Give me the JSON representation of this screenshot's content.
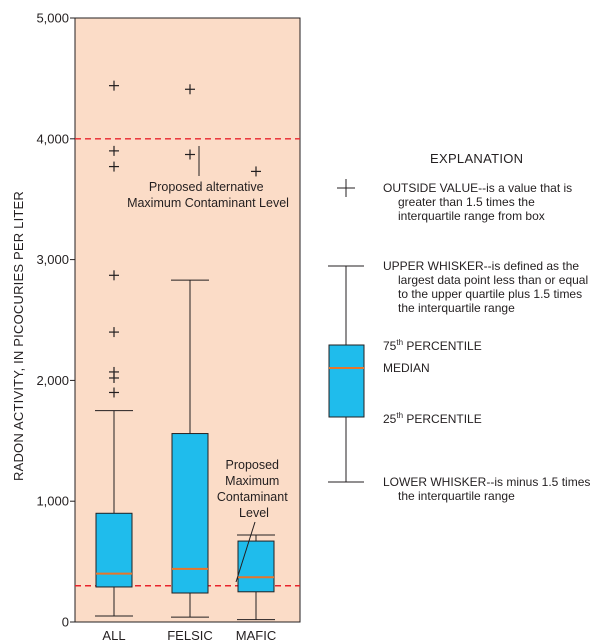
{
  "chart_data": {
    "type": "boxplot",
    "ylabel": "RADON ACTIVITY, IN PICOCURIES PER LITER",
    "ylim": [
      0,
      5000
    ],
    "y_ticks": [
      0,
      1000,
      2000,
      3000,
      4000,
      5000
    ],
    "y_tick_labels": [
      "0",
      "1,000",
      "2,000",
      "3,000",
      "4,000",
      "5,000"
    ],
    "categories": [
      "ALL",
      "FELSIC",
      "MAFIC"
    ],
    "boxes": [
      {
        "category": "ALL",
        "lower_whisker": 50,
        "q1": 290,
        "median": 400,
        "q3": 900,
        "upper_whisker": 1750,
        "outliers": [
          1900,
          2020,
          2070,
          2400,
          2870,
          3770,
          3900,
          4440
        ]
      },
      {
        "category": "FELSIC",
        "lower_whisker": 40,
        "q1": 240,
        "median": 440,
        "q3": 1560,
        "upper_whisker": 2830,
        "outliers": [
          3870,
          4410
        ]
      },
      {
        "category": "MAFIC",
        "lower_whisker": 20,
        "q1": 250,
        "median": 370,
        "q3": 670,
        "upper_whisker": 720,
        "outliers": [
          3730
        ]
      }
    ],
    "reference_lines": [
      {
        "value": 4000,
        "label_lines": [
          "Proposed alternative",
          "Maximum Contaminant Level"
        ]
      },
      {
        "value": 300,
        "label_lines": [
          "Proposed",
          "Maximum",
          "Contaminant",
          "Level"
        ]
      }
    ],
    "colors": {
      "plot_background": "#fbdcc7",
      "box_fill": "#1fbcec",
      "median_line": "#e8752a",
      "reference_line": "#e8242c",
      "ink": "#231f20"
    }
  },
  "explanation": {
    "title": "EXPLANATION",
    "outside_value": [
      "OUTSIDE VALUE--is a value that is",
      "greater than 1.5 times the",
      "interquartile range from box"
    ],
    "upper_whisker": [
      "UPPER WHISKER--is defined as the",
      "largest data point less than or equal",
      "to the upper quartile plus 1.5 times",
      "the interquartile range"
    ],
    "p75": {
      "num": "75",
      "sup": "th",
      "rest": " PERCENTILE"
    },
    "median": "MEDIAN",
    "p25": {
      "num": "25",
      "sup": "th",
      "rest": " PERCENTILE"
    },
    "lower_whisker": [
      "LOWER WHISKER--is minus 1.5 times",
      "the interquartile range"
    ]
  }
}
